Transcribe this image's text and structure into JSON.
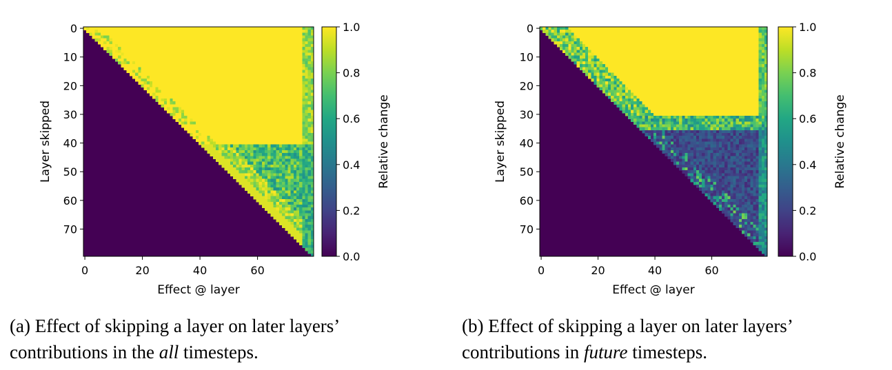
{
  "chart_data": [
    {
      "type": "heatmap",
      "xlabel": "Effect @ layer",
      "ylabel": "Layer skipped",
      "colorbar_label": "Relative change",
      "xlim": [
        0,
        79
      ],
      "ylim": [
        0,
        79
      ],
      "y_inverted": true,
      "xticks": [
        0,
        20,
        40,
        60
      ],
      "yticks": [
        0,
        10,
        20,
        30,
        40,
        50,
        60,
        70
      ],
      "cbar_ticks": [
        "0.0",
        "0.2",
        "0.4",
        "0.6",
        "0.8",
        "1.0"
      ],
      "cbar_range": [
        0,
        1
      ],
      "colormap": "viridis",
      "grid": false,
      "pattern": "lower triangle (x < y) = 0; rows 0-40 ≈ 1.0 except near-diagonal fringe; rows 41-79 mixed ≈ 0.5-0.9 with bright band near diagonal; last column decays to ~0.6"
    },
    {
      "type": "heatmap",
      "xlabel": "Effect @ layer",
      "ylabel": "Layer skipped",
      "colorbar_label": "Relative change",
      "xlim": [
        0,
        79
      ],
      "ylim": [
        0,
        79
      ],
      "y_inverted": true,
      "xticks": [
        0,
        20,
        40,
        60
      ],
      "yticks": [
        0,
        10,
        20,
        30,
        40,
        50,
        60,
        70
      ],
      "cbar_ticks": [
        "0.0",
        "0.2",
        "0.4",
        "0.6",
        "0.8",
        "1.0"
      ],
      "cbar_range": [
        0,
        1
      ],
      "colormap": "viridis",
      "grid": false,
      "pattern": "lower triangle (x < y) = 0; rows 0-30 ≈ 1.0 with mid-value fringe near diagonal; rows 31-35 transition; rows 36-79 low ≈ 0.15-0.35 with occasional brighter pixels near diagonal"
    }
  ],
  "captions": [
    {
      "line1": "(a) Effect of skipping a layer on later layers’",
      "line2_pre": "contributions in the ",
      "line2_em": "all",
      "line2_post": " timesteps."
    },
    {
      "line1": "(b) Effect of skipping a layer on later layers’",
      "line2_pre": "contributions in ",
      "line2_em": "future",
      "line2_post": " timesteps."
    }
  ]
}
